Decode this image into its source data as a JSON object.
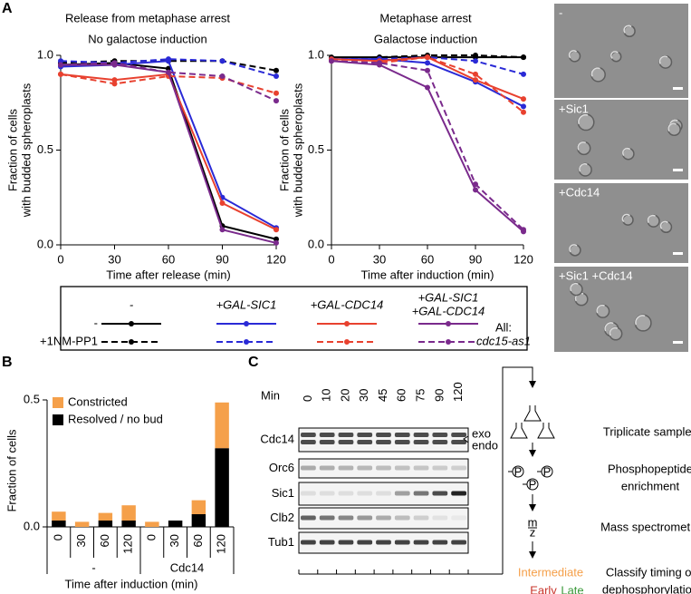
{
  "panel_labels": [
    "A",
    "B",
    "C"
  ],
  "chart_data": [
    {
      "type": "line",
      "title": [
        "Release from metaphase arrest",
        "No galactose induction"
      ],
      "xlabel": "Time after release (min)",
      "ylabel": [
        "Fraction of cells",
        "with budded spheroplasts"
      ],
      "x": [
        0,
        30,
        60,
        90,
        120
      ],
      "xlim": [
        0,
        120
      ],
      "xticks": [
        0,
        30,
        60,
        90,
        120
      ],
      "ylim": [
        0,
        1
      ],
      "yticks": [
        {
          "value": 0,
          "label": "0.0"
        },
        {
          "value": 0.5,
          "label": "0.5"
        },
        {
          "value": 1,
          "label": "1.0"
        }
      ],
      "series": [
        {
          "color": "#000000",
          "dashed": false,
          "values": [
            0.95,
            0.96,
            0.93,
            0.1,
            0.03
          ]
        },
        {
          "color": "#000000",
          "dashed": true,
          "values": [
            0.96,
            0.97,
            0.97,
            0.97,
            0.92
          ]
        },
        {
          "color": "#2a2ad6",
          "dashed": false,
          "values": [
            0.94,
            0.95,
            0.97,
            0.25,
            0.09
          ]
        },
        {
          "color": "#2a2ad6",
          "dashed": true,
          "values": [
            0.97,
            0.96,
            0.98,
            0.97,
            0.89
          ]
        },
        {
          "color": "#e8412f",
          "dashed": false,
          "values": [
            0.9,
            0.87,
            0.9,
            0.22,
            0.08
          ]
        },
        {
          "color": "#e8412f",
          "dashed": true,
          "values": [
            0.9,
            0.85,
            0.89,
            0.88,
            0.8
          ]
        },
        {
          "color": "#7a2a8c",
          "dashed": false,
          "values": [
            0.95,
            0.95,
            0.91,
            0.08,
            0.01
          ]
        },
        {
          "color": "#7a2a8c",
          "dashed": true,
          "values": [
            0.95,
            0.96,
            0.91,
            0.89,
            0.76
          ]
        }
      ]
    },
    {
      "type": "line",
      "title": [
        "Metaphase arrest",
        "Galactose induction"
      ],
      "xlabel": "Time after induction (min)",
      "ylabel": [
        "Fraction of cells",
        "with budded spheroplasts"
      ],
      "x": [
        0,
        30,
        60,
        90,
        120
      ],
      "xlim": [
        0,
        120
      ],
      "xticks": [
        0,
        30,
        60,
        90,
        120
      ],
      "ylim": [
        0,
        1
      ],
      "yticks": [
        {
          "value": 0,
          "label": "0.0"
        },
        {
          "value": 0.5,
          "label": "0.5"
        },
        {
          "value": 1,
          "label": "1.0"
        }
      ],
      "series": [
        {
          "color": "#000000",
          "dashed": false,
          "values": [
            0.99,
            0.99,
            0.99,
            0.99,
            0.99
          ]
        },
        {
          "color": "#000000",
          "dashed": true,
          "values": [
            0.98,
            0.99,
            1.0,
            1.0,
            0.99
          ]
        },
        {
          "color": "#2a2ad6",
          "dashed": false,
          "values": [
            0.98,
            0.98,
            0.96,
            0.86,
            0.73
          ]
        },
        {
          "color": "#2a2ad6",
          "dashed": true,
          "values": [
            0.98,
            0.98,
            0.99,
            0.97,
            0.9
          ]
        },
        {
          "color": "#e8412f",
          "dashed": false,
          "values": [
            0.98,
            0.97,
            0.99,
            0.87,
            0.77
          ]
        },
        {
          "color": "#e8412f",
          "dashed": true,
          "values": [
            0.97,
            0.96,
            0.99,
            0.9,
            0.7
          ]
        },
        {
          "color": "#7a2a8c",
          "dashed": false,
          "values": [
            0.97,
            0.95,
            0.83,
            0.29,
            0.07
          ]
        },
        {
          "color": "#7a2a8c",
          "dashed": true,
          "values": [
            0.97,
            0.96,
            0.92,
            0.32,
            0.08
          ]
        }
      ]
    },
    {
      "type": "bar",
      "stacked": true,
      "ylabel": "Fraction of cells",
      "xlabel": "Time after induction (min)",
      "categories": [
        "0",
        "30",
        "60",
        "120",
        "0",
        "30",
        "60",
        "120"
      ],
      "groups": [
        "-",
        "Cdc14"
      ],
      "ylim": [
        0,
        0.5
      ],
      "yticks": [
        {
          "value": 0,
          "label": "0.0"
        },
        {
          "value": 0.5,
          "label": "0.5"
        }
      ],
      "legend": "upper left",
      "series": [
        {
          "name": "Constricted",
          "color": "#f5a04a",
          "values": [
            0.035,
            0.02,
            0.03,
            0.06,
            0.02,
            0,
            0.055,
            0.18
          ]
        },
        {
          "name": "Resolved / no bud",
          "color": "#000000",
          "values": [
            0.025,
            0,
            0.025,
            0.025,
            0,
            0.025,
            0.05,
            0.31
          ]
        }
      ]
    }
  ],
  "legend": {
    "columns": [
      {
        "label": [
          "-"
        ],
        "color": "#000000"
      },
      {
        "label": [
          "+GAL-SIC1"
        ],
        "color": "#2a2ad6"
      },
      {
        "label": [
          "+GAL-CDC14"
        ],
        "color": "#e8412f"
      },
      {
        "label": [
          "+GAL-SIC1",
          "+GAL-CDC14"
        ],
        "color": "#7a2a8c"
      }
    ],
    "rows": [
      "-",
      "+1NM-PP1"
    ],
    "note": [
      "All:",
      "cdc15-as1"
    ]
  },
  "micrographs": [
    "-",
    "+Sic1",
    "+Cdc14",
    "+Sic1 +Cdc14"
  ],
  "blot": {
    "time_label": "Min",
    "times": [
      0,
      10,
      20,
      30,
      45,
      60,
      75,
      90,
      120
    ],
    "proteins": [
      "Cdc14",
      "Orc6",
      "Sic1",
      "Clb2",
      "Tub1"
    ],
    "forms": [
      "exo",
      "endo"
    ]
  },
  "workflow": {
    "steps": [
      [
        "Triplicate samples"
      ],
      [
        "Phosphopeptide",
        "enrichment"
      ],
      [
        "Mass spectrometry"
      ],
      [
        "Classify timing of",
        "dephosphorylation"
      ]
    ],
    "phospho": "P",
    "mz": [
      "m",
      "z"
    ],
    "timing": [
      {
        "label": "Intermediate",
        "color": "#f5a04a"
      },
      {
        "label": "Early",
        "color": "#c8342b"
      },
      {
        "label": "Late",
        "color": "#3a9a3a"
      }
    ]
  }
}
